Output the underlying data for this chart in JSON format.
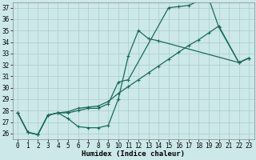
{
  "xlabel": "Humidex (Indice chaleur)",
  "xlim": [
    -0.5,
    23.5
  ],
  "ylim": [
    25.5,
    37.5
  ],
  "xticks": [
    0,
    1,
    2,
    3,
    4,
    5,
    6,
    7,
    8,
    9,
    10,
    11,
    12,
    13,
    14,
    15,
    16,
    17,
    18,
    19,
    20,
    21,
    22,
    23
  ],
  "yticks": [
    26,
    27,
    28,
    29,
    30,
    31,
    32,
    33,
    34,
    35,
    36,
    37
  ],
  "background_color": "#cce8e8",
  "grid_color": "#aacccc",
  "line_color": "#1a6b5a",
  "line1_x": [
    0,
    1,
    2,
    3,
    4,
    5,
    6,
    7,
    8,
    9,
    10,
    11,
    12,
    13,
    14,
    22,
    23
  ],
  "line1_y": [
    27.8,
    26.1,
    25.9,
    27.6,
    27.8,
    27.3,
    26.6,
    26.5,
    26.5,
    26.7,
    29.0,
    32.8,
    35.0,
    34.3,
    34.1,
    32.2,
    32.6
  ],
  "line2_x": [
    0,
    1,
    2,
    3,
    4,
    5,
    6,
    7,
    8,
    9,
    10,
    11,
    15,
    16,
    17,
    18,
    19,
    20,
    22,
    23
  ],
  "line2_y": [
    27.8,
    26.1,
    25.9,
    27.6,
    27.8,
    27.8,
    28.0,
    28.2,
    28.2,
    28.6,
    30.5,
    30.7,
    37.0,
    37.1,
    37.2,
    37.6,
    37.8,
    35.3,
    32.2,
    32.6
  ],
  "line3_x": [
    0,
    1,
    2,
    3,
    4,
    5,
    6,
    7,
    8,
    9,
    10,
    11,
    12,
    13,
    14,
    15,
    16,
    17,
    18,
    19,
    20,
    22,
    23
  ],
  "line3_y": [
    27.8,
    26.1,
    25.9,
    27.6,
    27.8,
    27.9,
    28.2,
    28.3,
    28.4,
    28.8,
    29.5,
    30.1,
    30.7,
    31.3,
    31.9,
    32.5,
    33.1,
    33.7,
    34.2,
    34.8,
    35.4,
    32.2,
    32.6
  ]
}
